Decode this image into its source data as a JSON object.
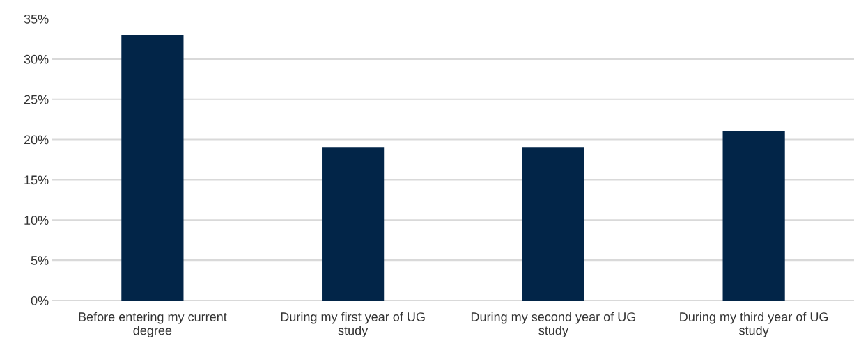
{
  "chart_data": {
    "type": "bar",
    "categories": [
      "Before entering my current degree",
      "During my first year of UG study",
      "During my second year of UG study",
      "During my third year of UG study"
    ],
    "values": [
      33,
      19,
      19,
      21
    ],
    "color": "#022548",
    "ylim": [
      0,
      35
    ],
    "yticks": [
      {
        "value": 0,
        "label": "0%"
      },
      {
        "value": 5,
        "label": "5%"
      },
      {
        "value": 10,
        "label": "10%"
      },
      {
        "value": 15,
        "label": "15%"
      },
      {
        "value": 20,
        "label": "20%"
      },
      {
        "value": 25,
        "label": "25%"
      },
      {
        "value": 30,
        "label": "30%"
      },
      {
        "value": 35,
        "label": "35%"
      }
    ],
    "grid": "y"
  }
}
